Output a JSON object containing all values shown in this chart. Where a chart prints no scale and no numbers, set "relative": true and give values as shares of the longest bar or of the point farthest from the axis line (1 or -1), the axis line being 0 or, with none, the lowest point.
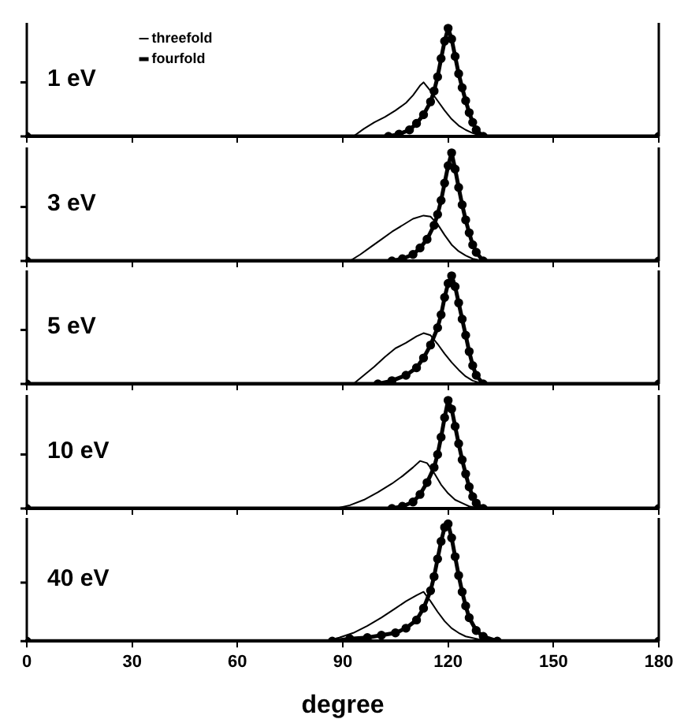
{
  "chart_data": [
    {
      "type": "line",
      "relative": true,
      "xlim": [
        0,
        180
      ],
      "xticks": [
        0,
        30,
        60,
        90,
        120,
        150,
        180
      ],
      "tick_labels": false,
      "legend": "top left",
      "annotations": [
        "1 eV"
      ],
      "series": [
        {
          "name": "threefold",
          "color": "#000000",
          "marker": "none",
          "x": [
            0,
            93,
            96,
            99,
            102,
            105,
            108,
            110,
            112,
            113,
            115,
            117,
            119,
            121,
            123,
            125,
            127,
            130,
            180
          ],
          "values": [
            0,
            0,
            0.07,
            0.13,
            0.18,
            0.24,
            0.31,
            0.38,
            0.47,
            0.5,
            0.42,
            0.33,
            0.24,
            0.16,
            0.1,
            0.06,
            0.03,
            0,
            0
          ]
        },
        {
          "name": "fourfold",
          "color": "#000000",
          "marker": "circle",
          "x": [
            0,
            103,
            106,
            109,
            111,
            113,
            115,
            116,
            117,
            118,
            119,
            120,
            121,
            122,
            123,
            124,
            125,
            126,
            127,
            128,
            130,
            180
          ],
          "values": [
            0,
            0,
            0.02,
            0.06,
            0.12,
            0.2,
            0.32,
            0.42,
            0.55,
            0.72,
            0.88,
            1,
            0.9,
            0.74,
            0.58,
            0.45,
            0.33,
            0.22,
            0.13,
            0.06,
            0,
            0
          ]
        }
      ]
    },
    {
      "type": "line",
      "relative": true,
      "xlim": [
        0,
        180
      ],
      "xticks": [
        0,
        30,
        60,
        90,
        120,
        150,
        180
      ],
      "tick_labels": false,
      "annotations": [
        "3 eV"
      ],
      "series": [
        {
          "color": "#000000",
          "marker": "none",
          "x": [
            0,
            92,
            95,
            98,
            101,
            104,
            107,
            110,
            113,
            115,
            117,
            119,
            121,
            123,
            125,
            127,
            130,
            180
          ],
          "values": [
            0,
            0,
            0.06,
            0.13,
            0.2,
            0.27,
            0.33,
            0.39,
            0.42,
            0.41,
            0.34,
            0.24,
            0.15,
            0.09,
            0.05,
            0.02,
            0,
            0
          ]
        },
        {
          "color": "#000000",
          "marker": "circle",
          "x": [
            0,
            104,
            107,
            110,
            112,
            114,
            116,
            117,
            118,
            119,
            120,
            121,
            122,
            123,
            124,
            125,
            126,
            127,
            128,
            130,
            180
          ],
          "values": [
            0,
            0,
            0.02,
            0.06,
            0.12,
            0.2,
            0.33,
            0.43,
            0.56,
            0.72,
            0.88,
            1,
            0.85,
            0.68,
            0.52,
            0.38,
            0.26,
            0.15,
            0.08,
            0,
            0
          ]
        }
      ]
    },
    {
      "type": "line",
      "relative": true,
      "xlim": [
        0,
        180
      ],
      "xticks": [
        0,
        30,
        60,
        90,
        120,
        150,
        180
      ],
      "tick_labels": false,
      "annotations": [
        "5 eV"
      ],
      "series": [
        {
          "color": "#000000",
          "marker": "none",
          "x": [
            0,
            93,
            96,
            99,
            102,
            105,
            108,
            111,
            113,
            115,
            117,
            119,
            121,
            123,
            125,
            127,
            130,
            180
          ],
          "values": [
            0,
            0,
            0.08,
            0.16,
            0.25,
            0.33,
            0.38,
            0.44,
            0.47,
            0.45,
            0.37,
            0.28,
            0.2,
            0.13,
            0.07,
            0.03,
            0,
            0
          ]
        },
        {
          "color": "#000000",
          "marker": "circle",
          "x": [
            0,
            100,
            104,
            108,
            111,
            113,
            115,
            117,
            118,
            119,
            120,
            121,
            122,
            123,
            124,
            125,
            126,
            127,
            128,
            130,
            180
          ],
          "values": [
            0,
            0,
            0.03,
            0.08,
            0.15,
            0.24,
            0.36,
            0.52,
            0.64,
            0.8,
            0.93,
            1,
            0.9,
            0.75,
            0.6,
            0.45,
            0.3,
            0.17,
            0.08,
            0,
            0
          ]
        }
      ]
    },
    {
      "type": "line",
      "relative": true,
      "xlim": [
        0,
        180
      ],
      "xticks": [
        0,
        30,
        60,
        90,
        120,
        150,
        180
      ],
      "tick_labels": false,
      "annotations": [
        "10 eV"
      ],
      "series": [
        {
          "color": "#000000",
          "marker": "none",
          "x": [
            0,
            88,
            92,
            96,
            100,
            104,
            107,
            110,
            112,
            114,
            116,
            118,
            120,
            122,
            124,
            126,
            129,
            180
          ],
          "values": [
            0,
            0,
            0.03,
            0.08,
            0.15,
            0.23,
            0.3,
            0.38,
            0.44,
            0.42,
            0.33,
            0.22,
            0.14,
            0.08,
            0.05,
            0.02,
            0,
            0
          ]
        },
        {
          "color": "#000000",
          "marker": "circle",
          "x": [
            0,
            104,
            107,
            110,
            112,
            114,
            116,
            117,
            118,
            119,
            120,
            121,
            122,
            123,
            124,
            125,
            126,
            127,
            128,
            130,
            180
          ],
          "values": [
            0,
            0,
            0.02,
            0.06,
            0.13,
            0.24,
            0.38,
            0.5,
            0.66,
            0.84,
            1,
            0.92,
            0.76,
            0.6,
            0.45,
            0.32,
            0.2,
            0.11,
            0.05,
            0,
            0
          ]
        }
      ]
    },
    {
      "type": "line",
      "relative": true,
      "xlim": [
        0,
        180
      ],
      "xticks": [
        0,
        30,
        60,
        90,
        120,
        150,
        180
      ],
      "tick_labels": "x",
      "xlabel": "degree",
      "annotations": [
        "40 eV"
      ],
      "series": [
        {
          "color": "#000000",
          "marker": "none",
          "x": [
            0,
            85,
            89,
            93,
            97,
            101,
            105,
            108,
            111,
            113,
            115,
            117,
            119,
            121,
            123,
            125,
            128,
            131,
            180
          ],
          "values": [
            0,
            0,
            0.03,
            0.07,
            0.13,
            0.2,
            0.28,
            0.34,
            0.39,
            0.42,
            0.34,
            0.25,
            0.17,
            0.11,
            0.07,
            0.04,
            0.02,
            0,
            0
          ]
        },
        {
          "color": "#000000",
          "marker": "circle",
          "x": [
            0,
            87,
            92,
            97,
            101,
            105,
            108,
            111,
            113,
            115,
            116,
            117,
            118,
            119,
            120,
            121,
            122,
            123,
            124,
            125,
            126,
            128,
            130,
            134,
            180
          ],
          "values": [
            0,
            0,
            0.02,
            0.03,
            0.05,
            0.07,
            0.11,
            0.18,
            0.28,
            0.43,
            0.55,
            0.7,
            0.85,
            0.97,
            1,
            0.88,
            0.72,
            0.56,
            0.42,
            0.3,
            0.2,
            0.09,
            0.04,
            0,
            0
          ]
        }
      ]
    }
  ]
}
